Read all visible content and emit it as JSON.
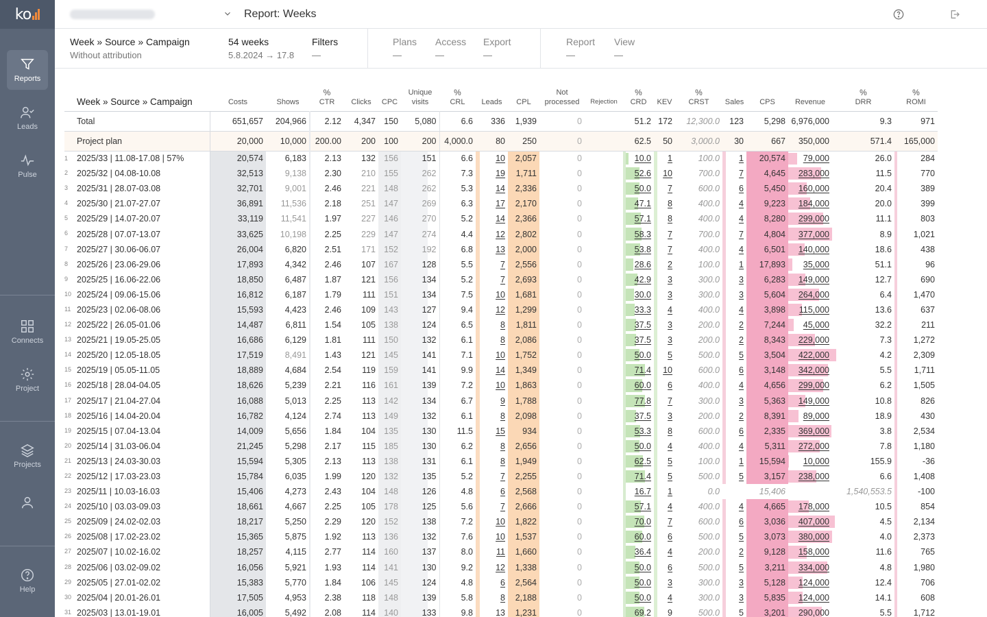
{
  "app": {
    "title": "Report: Weeks",
    "colors": {
      "sidebar": "#5b6677",
      "accent": "#f08a3c",
      "cpl": "#fbd8b6",
      "crd": "#c5e4b8",
      "cps": "#f3a9c2"
    }
  },
  "sidebar": {
    "logo": "ko",
    "items": [
      {
        "label": "Reports",
        "icon": "filter-icon",
        "active": true
      },
      {
        "label": "Leads",
        "icon": "user-check-icon"
      },
      {
        "label": "Pulse",
        "icon": "pulse-icon"
      },
      {
        "label": "Connects",
        "icon": "grid-icon"
      },
      {
        "label": "Project",
        "icon": "gear-icon"
      },
      {
        "label": "Projects",
        "icon": "layers-icon"
      },
      {
        "label": "",
        "icon": "user-icon"
      },
      {
        "label": "Help",
        "icon": "help-icon"
      }
    ]
  },
  "header": {
    "grouping": "Week » Source » Campaign",
    "attribution": "Without attribution",
    "period_count": "54 weeks",
    "period_range": "5.8.2024 → 17.8",
    "filters": {
      "label": "Filters",
      "value": "—"
    },
    "plans": {
      "label": "Plans",
      "value": "—"
    },
    "access": {
      "label": "Access",
      "value": "—"
    },
    "export": {
      "label": "Export",
      "value": "—"
    },
    "report": {
      "label": "Report",
      "value": "—"
    },
    "view": {
      "label": "View",
      "value": "—"
    }
  },
  "table": {
    "first_header": "Week » Source » Campaign",
    "columns": [
      {
        "key": "costs",
        "pct": "",
        "label": "Costs"
      },
      {
        "key": "shows",
        "pct": "",
        "label": "Shows"
      },
      {
        "key": "ctr",
        "pct": "%",
        "label": "CTR"
      },
      {
        "key": "clicks",
        "pct": "",
        "label": "Clicks"
      },
      {
        "key": "cpc",
        "pct": "",
        "label": "CPC"
      },
      {
        "key": "uniq",
        "pct": "",
        "label": "Unique visits"
      },
      {
        "key": "crl",
        "pct": "%",
        "label": "CRL"
      },
      {
        "key": "leads",
        "pct": "",
        "label": "Leads"
      },
      {
        "key": "cpl",
        "pct": "",
        "label": "CPL"
      },
      {
        "key": "notproc",
        "pct": "",
        "label": "Not processed"
      },
      {
        "key": "rej",
        "pct": "",
        "label": "Rejection"
      },
      {
        "key": "crd",
        "pct": "%",
        "label": "CRD"
      },
      {
        "key": "kev",
        "pct": "",
        "label": "KEV"
      },
      {
        "key": "crst",
        "pct": "%",
        "label": "CRST"
      },
      {
        "key": "sales",
        "pct": "",
        "label": "Sales"
      },
      {
        "key": "cps",
        "pct": "",
        "label": "CPS"
      },
      {
        "key": "rev",
        "pct": "",
        "label": "Revenue"
      },
      {
        "key": "drr",
        "pct": "%",
        "label": "DRR"
      },
      {
        "key": "romi",
        "pct": "%",
        "label": "ROMI"
      }
    ],
    "total": {
      "name": "Total",
      "v": [
        "651,657",
        "204,966",
        "2.12",
        "4,347",
        "150",
        "5,080",
        "6.6",
        "336",
        "1,939",
        "0",
        "",
        "51.2",
        "172",
        "12,300.0",
        "123",
        "5,298",
        "6,976,000",
        "9.3",
        "971"
      ]
    },
    "plan": {
      "name": "Project plan",
      "v": [
        "20,000",
        "10,000",
        "200.00",
        "200",
        "100",
        "200",
        "4,000.0",
        "80",
        "250",
        "0",
        "",
        "62.5",
        "50",
        "3,000.0",
        "30",
        "667",
        "350,000",
        "571.4",
        "165,000"
      ]
    },
    "rows": [
      {
        "i": "1",
        "name": "2025/33 | 11.08-17.08 | 57%",
        "v": [
          "20,574",
          "6,183",
          "2.13",
          "132",
          "156",
          "151",
          "6.6",
          "10",
          "2,057",
          "0",
          "",
          "10.0",
          "1",
          "100.0",
          "1",
          "20,574",
          "79,000",
          "26.0",
          "284"
        ],
        "crd": 0.14,
        "rev": 0.18
      },
      {
        "i": "2",
        "name": "2025/32 | 04.08-10.08",
        "v": [
          "32,513",
          "9,138",
          "2.30",
          "210",
          "155",
          "262",
          "7.3",
          "19",
          "1,711",
          "0",
          "",
          "52.6",
          "10",
          "700.0",
          "7",
          "4,645",
          "283,000",
          "11.5",
          "770"
        ],
        "crd": 0.73,
        "rev": 0.69
      },
      {
        "i": "3",
        "name": "2025/31 | 28.07-03.08",
        "v": [
          "32,701",
          "9,001",
          "2.46",
          "221",
          "148",
          "262",
          "5.3",
          "14",
          "2,336",
          "0",
          "",
          "50.0",
          "7",
          "600.0",
          "6",
          "5,450",
          "160,000",
          "20.4",
          "389"
        ],
        "crd": 0.7,
        "rev": 0.39
      },
      {
        "i": "4",
        "name": "2025/30 | 21.07-27.07",
        "v": [
          "36,891",
          "11,536",
          "2.18",
          "251",
          "147",
          "269",
          "6.3",
          "17",
          "2,170",
          "0",
          "",
          "47.1",
          "8",
          "400.0",
          "4",
          "9,223",
          "184,000",
          "20.0",
          "399"
        ],
        "crd": 0.66,
        "rev": 0.45
      },
      {
        "i": "5",
        "name": "2025/29 | 14.07-20.07",
        "v": [
          "33,119",
          "11,541",
          "1.97",
          "227",
          "146",
          "270",
          "5.2",
          "14",
          "2,366",
          "0",
          "",
          "57.1",
          "8",
          "400.0",
          "4",
          "8,280",
          "299,000",
          "11.1",
          "803"
        ],
        "crd": 0.8,
        "rev": 0.73
      },
      {
        "i": "6",
        "name": "2025/28 | 07.07-13.07",
        "v": [
          "33,625",
          "10,198",
          "2.25",
          "229",
          "147",
          "274",
          "4.4",
          "12",
          "2,802",
          "0",
          "",
          "58.3",
          "7",
          "700.0",
          "7",
          "4,804",
          "377,000",
          "8.9",
          "1,021"
        ],
        "crd": 0.81,
        "rev": 0.92
      },
      {
        "i": "7",
        "name": "2025/27 | 30.06-06.07",
        "v": [
          "26,004",
          "6,820",
          "2.51",
          "171",
          "152",
          "192",
          "6.8",
          "13",
          "2,000",
          "0",
          "",
          "53.8",
          "7",
          "400.0",
          "4",
          "6,501",
          "140,000",
          "18.6",
          "438"
        ],
        "crd": 0.75,
        "rev": 0.34
      },
      {
        "i": "8",
        "name": "2025/26 | 23.06-29.06",
        "v": [
          "17,893",
          "4,342",
          "2.46",
          "107",
          "167",
          "128",
          "5.5",
          "7",
          "2,556",
          "0",
          "",
          "28.6",
          "2",
          "100.0",
          "1",
          "17,893",
          "35,000",
          "51.1",
          "96"
        ],
        "crd": 0.4,
        "rev": 0.08
      },
      {
        "i": "9",
        "name": "2025/25 | 16.06-22.06",
        "v": [
          "18,850",
          "6,487",
          "1.87",
          "121",
          "156",
          "134",
          "5.2",
          "7",
          "2,693",
          "0",
          "",
          "42.9",
          "3",
          "300.0",
          "3",
          "6,283",
          "149,000",
          "12.7",
          "690"
        ],
        "crd": 0.6,
        "rev": 0.36
      },
      {
        "i": "10",
        "name": "2025/24 | 09.06-15.06",
        "v": [
          "16,812",
          "6,187",
          "1.79",
          "111",
          "151",
          "134",
          "7.5",
          "10",
          "1,681",
          "0",
          "",
          "30.0",
          "3",
          "300.0",
          "3",
          "5,604",
          "264,000",
          "6.4",
          "1,470"
        ],
        "crd": 0.42,
        "rev": 0.64
      },
      {
        "i": "11",
        "name": "2025/23 | 02.06-08.06",
        "v": [
          "15,593",
          "4,423",
          "2.46",
          "109",
          "143",
          "127",
          "9.4",
          "12",
          "1,299",
          "0",
          "",
          "33.3",
          "4",
          "400.0",
          "4",
          "3,898",
          "115,000",
          "13.6",
          "637"
        ],
        "crd": 0.46,
        "rev": 0.28
      },
      {
        "i": "12",
        "name": "2025/22 | 26.05-01.06",
        "v": [
          "14,487",
          "6,811",
          "1.54",
          "105",
          "138",
          "124",
          "6.5",
          "8",
          "1,811",
          "0",
          "",
          "37.5",
          "3",
          "200.0",
          "2",
          "7,244",
          "45,000",
          "32.2",
          "211"
        ],
        "crd": 0.52,
        "rev": 0.11
      },
      {
        "i": "13",
        "name": "2025/21 | 19.05-25.05",
        "v": [
          "16,686",
          "6,129",
          "1.81",
          "111",
          "150",
          "132",
          "6.1",
          "8",
          "2,086",
          "0",
          "",
          "37.5",
          "3",
          "200.0",
          "2",
          "8,343",
          "229,000",
          "7.3",
          "1,272"
        ],
        "crd": 0.52,
        "rev": 0.56
      },
      {
        "i": "14",
        "name": "2025/20 | 12.05-18.05",
        "v": [
          "17,519",
          "8,491",
          "1.43",
          "121",
          "145",
          "141",
          "7.1",
          "10",
          "1,752",
          "0",
          "",
          "50.0",
          "5",
          "500.0",
          "5",
          "3,504",
          "422,000",
          "4.2",
          "2,309"
        ],
        "crd": 0.7,
        "rev": 1.0
      },
      {
        "i": "15",
        "name": "2025/19 | 05.05-11.05",
        "v": [
          "18,889",
          "4,684",
          "2.54",
          "119",
          "159",
          "141",
          "9.9",
          "14",
          "1,349",
          "0",
          "",
          "71.4",
          "10",
          "600.0",
          "6",
          "3,148",
          "342,000",
          "5.5",
          "1,711"
        ],
        "crd": 1.0,
        "rev": 0.83
      },
      {
        "i": "16",
        "name": "2025/18 | 28.04-04.05",
        "v": [
          "18,626",
          "5,239",
          "2.21",
          "116",
          "161",
          "139",
          "7.2",
          "10",
          "1,863",
          "0",
          "",
          "60.0",
          "6",
          "400.0",
          "4",
          "4,656",
          "299,000",
          "6.2",
          "1,505"
        ],
        "crd": 0.84,
        "rev": 0.73
      },
      {
        "i": "17",
        "name": "2025/17 | 21.04-27.04",
        "v": [
          "16,088",
          "5,013",
          "2.25",
          "113",
          "142",
          "134",
          "6.7",
          "9",
          "1,788",
          "0",
          "",
          "77.8",
          "7",
          "300.0",
          "3",
          "5,363",
          "149,000",
          "10.8",
          "826"
        ],
        "crd": 1.0,
        "rev": 0.36
      },
      {
        "i": "18",
        "name": "2025/16 | 14.04-20.04",
        "v": [
          "16,782",
          "4,124",
          "2.74",
          "113",
          "149",
          "132",
          "6.1",
          "8",
          "2,098",
          "0",
          "",
          "37.5",
          "3",
          "200.0",
          "2",
          "8,391",
          "89,000",
          "18.9",
          "430"
        ],
        "crd": 0.52,
        "rev": 0.22
      },
      {
        "i": "19",
        "name": "2025/15 | 07.04-13.04",
        "v": [
          "14,009",
          "5,656",
          "1.84",
          "104",
          "135",
          "130",
          "11.5",
          "15",
          "934",
          "0",
          "",
          "53.3",
          "8",
          "600.0",
          "6",
          "2,335",
          "369,000",
          "3.8",
          "2,534"
        ],
        "crd": 0.75,
        "rev": 0.9
      },
      {
        "i": "20",
        "name": "2025/14 | 31.03-06.04",
        "v": [
          "21,245",
          "5,298",
          "2.17",
          "115",
          "185",
          "130",
          "6.2",
          "8",
          "2,656",
          "0",
          "",
          "50.0",
          "4",
          "400.0",
          "4",
          "5,311",
          "272,000",
          "7.8",
          "1,180"
        ],
        "crd": 0.7,
        "rev": 0.66
      },
      {
        "i": "21",
        "name": "2025/13 | 24.03-30.03",
        "v": [
          "15,594",
          "5,305",
          "2.13",
          "113",
          "138",
          "131",
          "6.1",
          "8",
          "1,949",
          "0",
          "",
          "62.5",
          "5",
          "100.0",
          "1",
          "15,594",
          "10,000",
          "155.9",
          "-36"
        ],
        "crd": 0.88,
        "rev": 0.02
      },
      {
        "i": "22",
        "name": "2025/12 | 17.03-23.03",
        "v": [
          "15,784",
          "6,035",
          "1.99",
          "120",
          "132",
          "135",
          "5.2",
          "7",
          "2,255",
          "0",
          "",
          "71.4",
          "5",
          "500.0",
          "5",
          "3,157",
          "238,000",
          "6.6",
          "1,408"
        ],
        "crd": 1.0,
        "rev": 0.58
      },
      {
        "i": "23",
        "name": "2025/11 | 10.03-16.03",
        "v": [
          "15,406",
          "4,273",
          "2.43",
          "104",
          "148",
          "126",
          "4.8",
          "6",
          "2,568",
          "0",
          "",
          "16.7",
          "1",
          "0.0",
          "",
          "15,406",
          "",
          "1,540,553.5",
          "-100"
        ],
        "crd": 0.0,
        "rev": 0.0,
        "nosale": true
      },
      {
        "i": "24",
        "name": "2025/10 | 03.03-09.03",
        "v": [
          "18,661",
          "4,667",
          "2.25",
          "105",
          "178",
          "125",
          "5.6",
          "7",
          "2,666",
          "0",
          "",
          "57.1",
          "4",
          "400.0",
          "4",
          "4,665",
          "178,000",
          "10.5",
          "854"
        ],
        "crd": 0.8,
        "rev": 0.43
      },
      {
        "i": "25",
        "name": "2025/09 | 24.02-02.03",
        "v": [
          "18,217",
          "5,250",
          "2.29",
          "120",
          "152",
          "138",
          "7.2",
          "10",
          "1,822",
          "0",
          "",
          "70.0",
          "7",
          "600.0",
          "6",
          "3,036",
          "407,000",
          "4.5",
          "2,134"
        ],
        "crd": 0.98,
        "rev": 0.97
      },
      {
        "i": "26",
        "name": "2025/08 | 17.02-23.02",
        "v": [
          "15,365",
          "5,875",
          "1.92",
          "113",
          "136",
          "132",
          "7.6",
          "10",
          "1,537",
          "0",
          "",
          "60.0",
          "6",
          "500.0",
          "5",
          "3,073",
          "380,000",
          "4.0",
          "2,373"
        ],
        "crd": 0.84,
        "rev": 0.91
      },
      {
        "i": "27",
        "name": "2025/07 | 10.02-16.02",
        "v": [
          "18,257",
          "4,115",
          "2.77",
          "114",
          "160",
          "137",
          "8.0",
          "11",
          "1,660",
          "0",
          "",
          "36.4",
          "4",
          "200.0",
          "2",
          "9,128",
          "158,000",
          "11.6",
          "765"
        ],
        "crd": 0.51,
        "rev": 0.38
      },
      {
        "i": "28",
        "name": "2025/06 | 03.02-09.02",
        "v": [
          "16,056",
          "5,921",
          "1.93",
          "114",
          "141",
          "130",
          "9.2",
          "12",
          "1,338",
          "0",
          "",
          "50.0",
          "6",
          "500.0",
          "5",
          "3,211",
          "334,000",
          "4.8",
          "1,980"
        ],
        "crd": 0.7,
        "rev": 0.81
      },
      {
        "i": "29",
        "name": "2025/05 | 27.01-02.02",
        "v": [
          "15,383",
          "5,770",
          "1.84",
          "106",
          "145",
          "124",
          "4.8",
          "6",
          "2,564",
          "0",
          "",
          "50.0",
          "3",
          "300.0",
          "3",
          "5,128",
          "124,000",
          "12.4",
          "706"
        ],
        "crd": 0.7,
        "rev": 0.3
      },
      {
        "i": "30",
        "name": "2025/04 | 20.01-26.01",
        "v": [
          "17,505",
          "4,953",
          "2.38",
          "118",
          "148",
          "139",
          "5.8",
          "8",
          "2,188",
          "0",
          "",
          "50.0",
          "4",
          "300.0",
          "3",
          "5,835",
          "124,000",
          "14.1",
          "608"
        ],
        "crd": 0.7,
        "rev": 0.3
      },
      {
        "i": "31",
        "name": "2025/03 | 13.01-19.01",
        "v": [
          "16,005",
          "5,492",
          "2.08",
          "114",
          "140",
          "133",
          "9.8",
          "13",
          "1,231",
          "0",
          "",
          "69.2",
          "9",
          "500.0",
          "5",
          "3,201",
          "290,000",
          "5.5",
          "1,712"
        ],
        "crd": 0.97,
        "rev": 0.7
      }
    ]
  }
}
